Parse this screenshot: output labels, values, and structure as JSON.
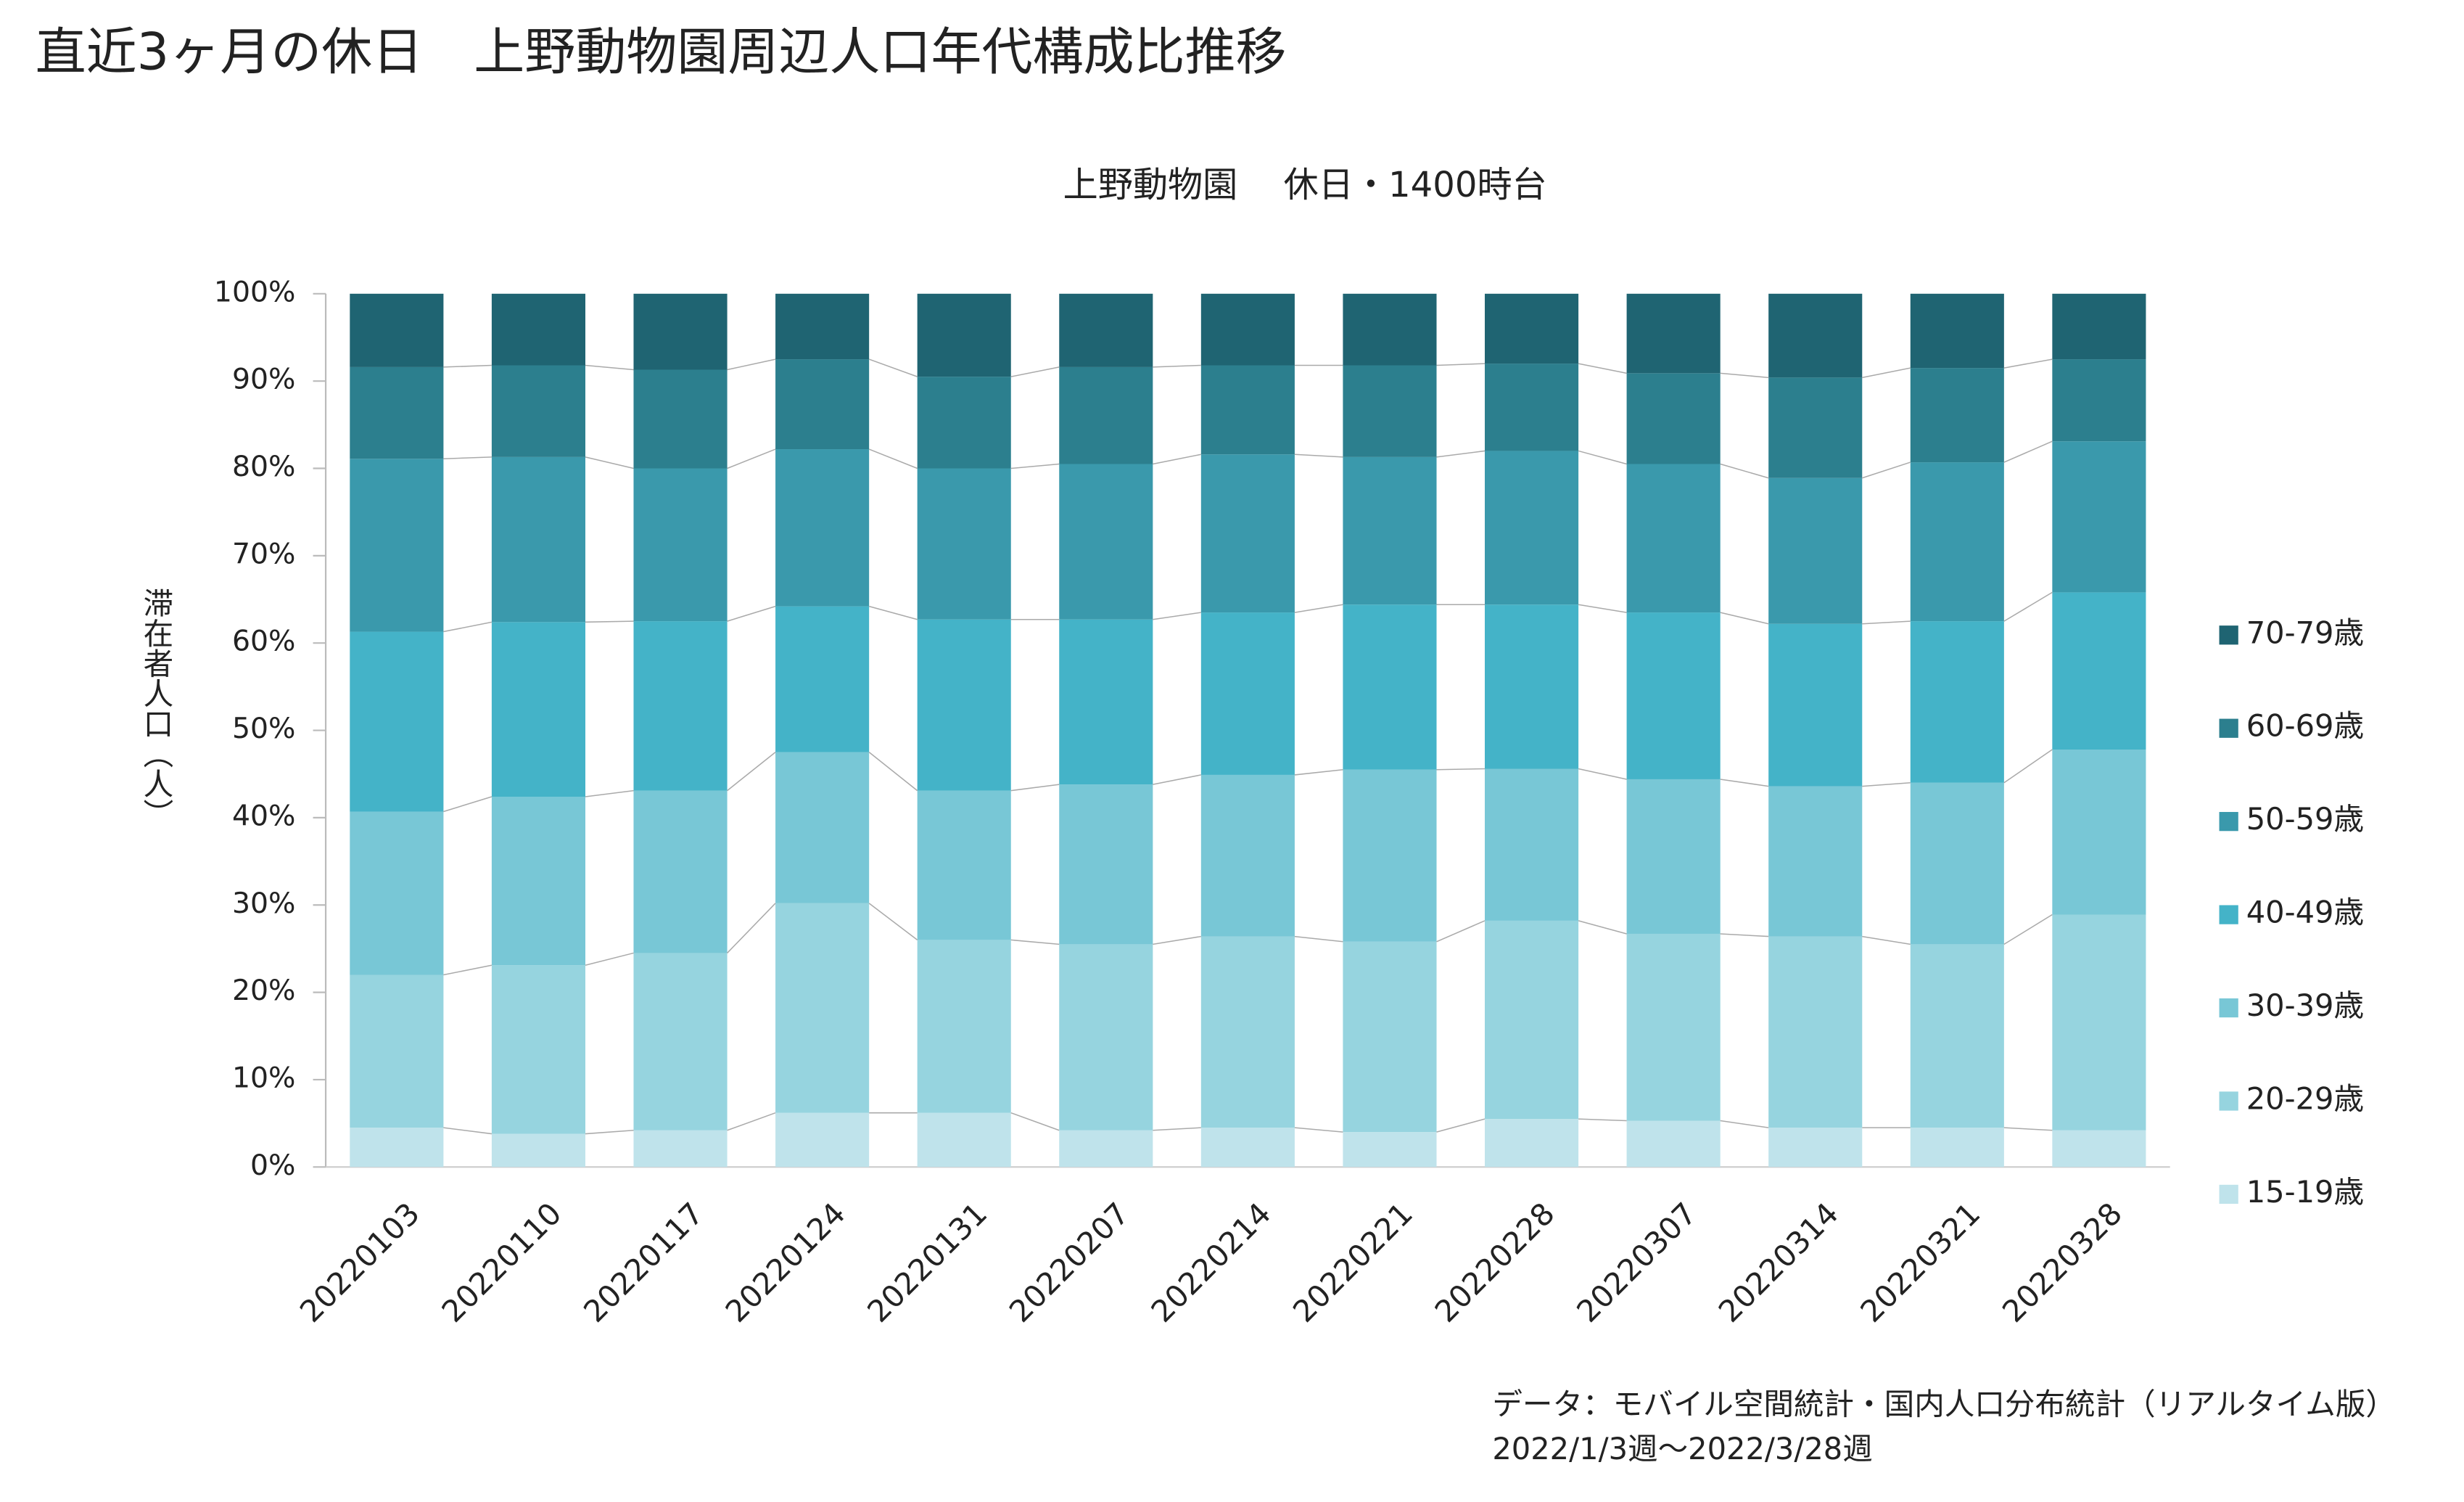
{
  "chart_data": {
    "type": "stacked_bar",
    "title": "直近3ヶ月の休日　上野動物園周辺人口年代構成比推移",
    "subtitle": "上野動物園　 休日・1400時台",
    "y_label": "滞在者人口（人）",
    "notes": [
      "データ：モバイル空間統計・国内人口分布統計（リアルタイム版）",
      "2022/1/3週〜2022/3/28週"
    ],
    "categories": [
      "20220103",
      "20220110",
      "20220117",
      "20220124",
      "20220131",
      "20220207",
      "20220214",
      "20220221",
      "20220228",
      "20220307",
      "20220314",
      "20220321",
      "20220328"
    ],
    "series": [
      {
        "name": "15-19歳",
        "color": "#bfe3eb",
        "values": [
          4.5,
          3.8,
          4.2,
          6.2,
          6.2,
          4.2,
          4.5,
          4.0,
          5.5,
          5.3,
          4.5,
          4.5,
          4.2
        ]
      },
      {
        "name": "20-29歳",
        "color": "#96d4df",
        "values": [
          17.5,
          19.3,
          20.3,
          24.0,
          19.8,
          21.3,
          21.9,
          21.8,
          22.7,
          21.4,
          21.9,
          21.0,
          24.7
        ]
      },
      {
        "name": "30-39歳",
        "color": "#78c7d6",
        "values": [
          18.7,
          19.3,
          18.6,
          17.3,
          17.1,
          18.3,
          18.5,
          19.7,
          17.4,
          17.7,
          17.2,
          18.5,
          18.9
        ]
      },
      {
        "name": "40-49歳",
        "color": "#44b3c8",
        "values": [
          20.6,
          20.0,
          19.4,
          16.7,
          19.6,
          18.9,
          18.6,
          18.9,
          18.8,
          19.1,
          18.6,
          18.5,
          18.0
        ]
      },
      {
        "name": "50-59歳",
        "color": "#3a99ac",
        "values": [
          19.8,
          18.9,
          17.5,
          18.0,
          17.3,
          17.8,
          18.1,
          16.9,
          17.6,
          17.0,
          16.7,
          18.2,
          17.3
        ]
      },
      {
        "name": "60-69歳",
        "color": "#2c7f8e",
        "values": [
          10.5,
          10.5,
          11.3,
          10.3,
          10.5,
          11.1,
          10.2,
          10.5,
          10.0,
          10.4,
          11.5,
          10.8,
          9.4
        ]
      },
      {
        "name": "70-79歳",
        "color": "#1f6472",
        "values": [
          8.4,
          8.2,
          8.7,
          7.5,
          9.5,
          8.4,
          8.2,
          8.2,
          8.0,
          9.1,
          9.6,
          8.5,
          7.5
        ]
      }
    ],
    "ylim": [
      0,
      100
    ],
    "yticks": [
      {
        "value": 0,
        "label": "0%"
      },
      {
        "value": 10,
        "label": "10%"
      },
      {
        "value": 20,
        "label": "20%"
      },
      {
        "value": 30,
        "label": "30%"
      },
      {
        "value": 40,
        "label": "40%"
      },
      {
        "value": 50,
        "label": "50%"
      },
      {
        "value": 60,
        "label": "60%"
      },
      {
        "value": 70,
        "label": "70%"
      },
      {
        "value": 80,
        "label": "80%"
      },
      {
        "value": 90,
        "label": "90%"
      },
      {
        "value": 100,
        "label": "100%"
      }
    ],
    "grid": false
  }
}
